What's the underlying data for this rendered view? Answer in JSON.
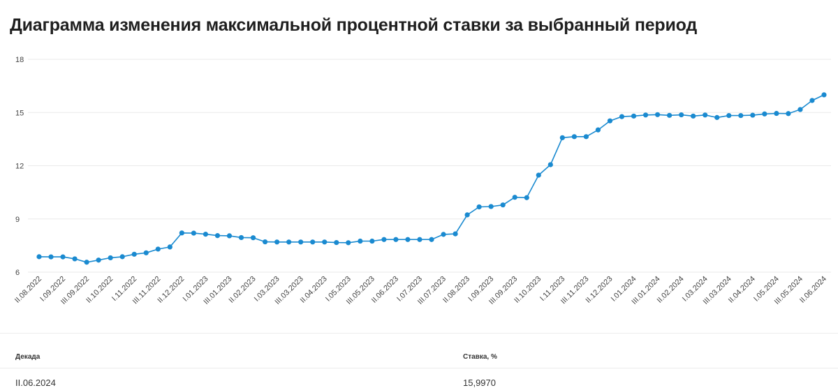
{
  "title": "Диаграмма изменения максимальной процентной ставки за выбранный период",
  "colors": {
    "line": "#1a8ad0",
    "grid": "#e9e9e9",
    "text": "#444444"
  },
  "chart_data": {
    "type": "line",
    "ylim": [
      6,
      18
    ],
    "yticks": [
      6,
      9,
      12,
      15,
      18
    ],
    "x_tick_labels": [
      "II.08.2022",
      "I.09.2022",
      "III.09.2022",
      "II.10.2022",
      "I.11.2022",
      "III.11.2022",
      "II.12.2022",
      "I.01.2023",
      "III.01.2023",
      "II.02.2023",
      "I.03.2023",
      "III.03.2023",
      "II.04.2023",
      "I.05.2023",
      "III.05.2023",
      "II.06.2023",
      "I.07.2023",
      "III.07.2023",
      "II.08.2023",
      "I.09.2023",
      "III.09.2023",
      "II.10.2023",
      "I.11.2023",
      "III.11.2023",
      "II.12.2023",
      "I.01.2024",
      "III.01.2024",
      "II.02.2024",
      "I.03.2024",
      "III.03.2024",
      "II.04.2024",
      "I.05.2024",
      "III.05.2024",
      "II.06.2024"
    ],
    "values": [
      6.87,
      6.86,
      6.86,
      6.75,
      6.56,
      6.68,
      6.81,
      6.87,
      7.01,
      7.09,
      7.3,
      7.42,
      8.21,
      8.2,
      8.14,
      8.06,
      8.05,
      7.95,
      7.94,
      7.71,
      7.7,
      7.7,
      7.7,
      7.7,
      7.7,
      7.67,
      7.66,
      7.75,
      7.75,
      7.84,
      7.84,
      7.84,
      7.84,
      7.84,
      8.13,
      8.16,
      9.23,
      9.68,
      9.7,
      9.79,
      10.22,
      10.2,
      11.47,
      12.06,
      13.58,
      13.64,
      13.64,
      14.02,
      14.53,
      14.77,
      14.8,
      14.86,
      14.88,
      14.84,
      14.87,
      14.8,
      14.86,
      14.72,
      14.83,
      14.83,
      14.85,
      14.92,
      14.95,
      14.94,
      15.17,
      15.68,
      15.997
    ],
    "series_name": "Ставка, %"
  },
  "table": {
    "headers": {
      "decade": "Декада",
      "rate": "Ставка, %"
    },
    "rows": [
      {
        "decade": "II.06.2024",
        "rate": "15,9970"
      }
    ]
  }
}
